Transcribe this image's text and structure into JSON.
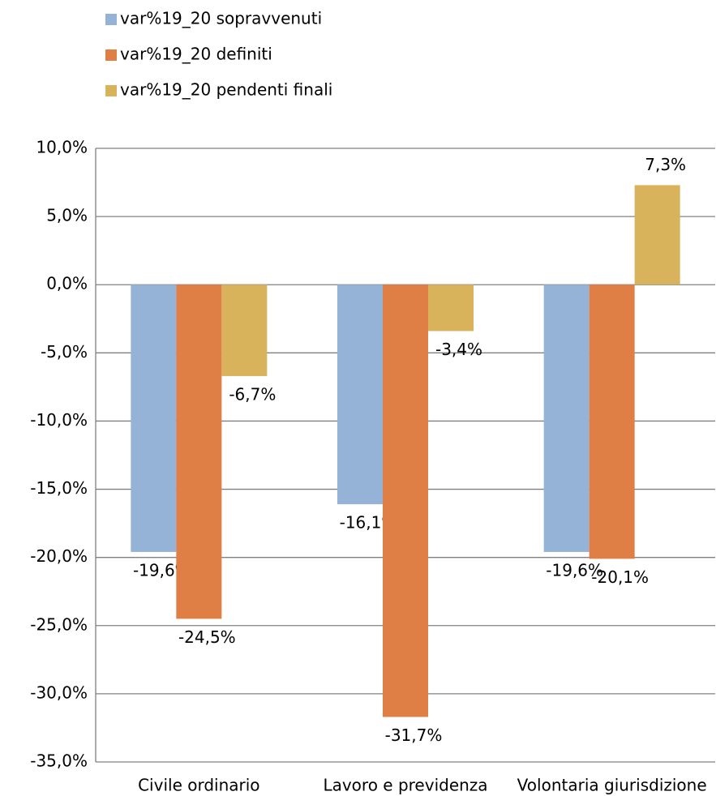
{
  "chart_data": {
    "type": "bar",
    "categories": [
      "Civile ordinario",
      "Lavoro e previdenza",
      "Volontaria giurisdizione"
    ],
    "series": [
      {
        "name": "var%19_20 sopravvenuti",
        "color": "#95b3d7",
        "values": [
          -19.6,
          -16.1,
          -19.6
        ],
        "value_labels": [
          "-19,6%",
          "-16,1%",
          "-19,6%"
        ]
      },
      {
        "name": "var%19_20 definiti",
        "color": "#e07f45",
        "values": [
          -24.5,
          -31.7,
          -20.1
        ],
        "value_labels": [
          "-24,5%",
          "-31,7%",
          "-20,1%"
        ]
      },
      {
        "name": "var%19_20 pendenti finali",
        "color": "#d9b25c",
        "values": [
          -6.7,
          -3.4,
          7.3
        ],
        "value_labels": [
          "-6,7%",
          "-3,4%",
          "7,3%"
        ]
      }
    ],
    "ylim": [
      -35,
      10
    ],
    "yticks": [
      {
        "value": -35,
        "label": "-35,0%"
      },
      {
        "value": -30,
        "label": "-30,0%"
      },
      {
        "value": -25,
        "label": "-25,0%"
      },
      {
        "value": -20,
        "label": "-20,0%"
      },
      {
        "value": -15,
        "label": "-15,0%"
      },
      {
        "value": -10,
        "label": "-10,0%"
      },
      {
        "value": -5,
        "label": "-5,0%"
      },
      {
        "value": 0,
        "label": "0,0%"
      },
      {
        "value": 5,
        "label": "5,0%"
      },
      {
        "value": 10,
        "label": "10,0%"
      }
    ],
    "grid": true,
    "legend": "top-left"
  }
}
